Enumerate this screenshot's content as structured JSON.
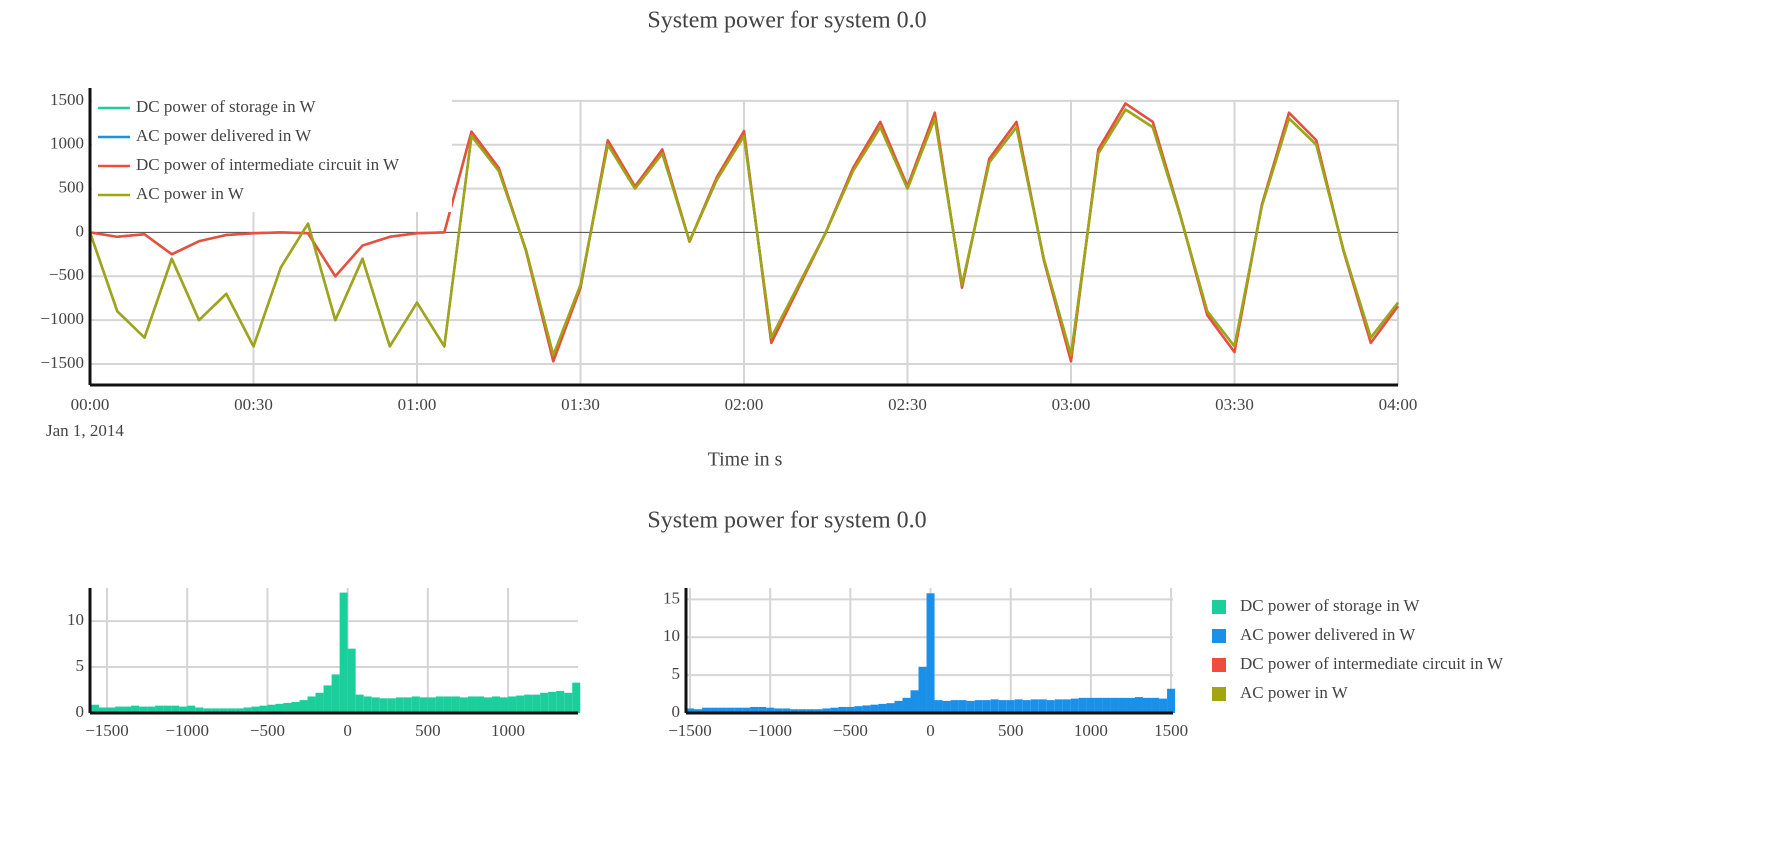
{
  "chart_data": [
    {
      "type": "line",
      "title": "System power for system 0.0",
      "x_label": "Time in s",
      "x_date_label": "Jan 1, 2014",
      "x": [
        "2014-01-01 00:00",
        "2014-01-01 00:05",
        "2014-01-01 00:10",
        "2014-01-01 00:15",
        "2014-01-01 00:20",
        "2014-01-01 00:25",
        "2014-01-01 00:30",
        "2014-01-01 00:35",
        "2014-01-01 00:40",
        "2014-01-01 00:45",
        "2014-01-01 00:50",
        "2014-01-01 00:55",
        "2014-01-01 01:00",
        "2014-01-01 01:05",
        "2014-01-01 01:10",
        "2014-01-01 01:15",
        "2014-01-01 01:20",
        "2014-01-01 01:25",
        "2014-01-01 01:30",
        "2014-01-01 01:35",
        "2014-01-01 01:40",
        "2014-01-01 01:45",
        "2014-01-01 01:50",
        "2014-01-01 01:55",
        "2014-01-01 02:00",
        "2014-01-01 02:05",
        "2014-01-01 02:10",
        "2014-01-01 02:15",
        "2014-01-01 02:20",
        "2014-01-01 02:25",
        "2014-01-01 02:30",
        "2014-01-01 02:35",
        "2014-01-01 02:40",
        "2014-01-01 02:45",
        "2014-01-01 02:50",
        "2014-01-01 02:55",
        "2014-01-01 03:00",
        "2014-01-01 03:05",
        "2014-01-01 03:10",
        "2014-01-01 03:15",
        "2014-01-01 03:20",
        "2014-01-01 03:25",
        "2014-01-01 03:30",
        "2014-01-01 03:35",
        "2014-01-01 03:40",
        "2014-01-01 03:45",
        "2014-01-01 03:50",
        "2014-01-01 03:55",
        "2014-01-01 04:00"
      ],
      "xlim": [
        "2014-01-01 00:00",
        "2014-01-01 04:00"
      ],
      "xticks": [
        {
          "value": "2014-01-01 00:00",
          "label": "00:00"
        },
        {
          "value": "2014-01-01 00:30",
          "label": "00:30"
        },
        {
          "value": "2014-01-01 01:00",
          "label": "01:00"
        },
        {
          "value": "2014-01-01 01:30",
          "label": "01:30"
        },
        {
          "value": "2014-01-01 02:00",
          "label": "02:00"
        },
        {
          "value": "2014-01-01 02:30",
          "label": "02:30"
        },
        {
          "value": "2014-01-01 03:00",
          "label": "03:00"
        },
        {
          "value": "2014-01-01 03:30",
          "label": "03:30"
        },
        {
          "value": "2014-01-01 04:00",
          "label": "04:00"
        }
      ],
      "ylim": [
        -1740,
        1510
      ],
      "yticks": [
        {
          "value": -1500,
          "label": "−1500"
        },
        {
          "value": -1000,
          "label": "−1000"
        },
        {
          "value": -500,
          "label": "−500"
        },
        0,
        500,
        1000,
        1500
      ],
      "grid": true,
      "legend": "upper left",
      "series": [
        {
          "name": "DC power of storage in W",
          "color": "#1bcf9c",
          "values": [
            0,
            -50,
            -20,
            -250,
            -100,
            -30,
            -10,
            0,
            -10,
            -500,
            -150,
            -50,
            -10,
            0,
            1150,
            735,
            -210,
            -1470,
            -630,
            1050,
            525,
            945,
            -105,
            630,
            1155,
            -1260,
            -630,
            0,
            735,
            1260,
            525,
            1365,
            -630,
            840,
            1260,
            -315,
            -1470,
            945,
            1470,
            1260,
            210,
            -945,
            -1365,
            315,
            1365,
            1050,
            -210,
            -1260,
            -840
          ]
        },
        {
          "name": "AC power delivered in W",
          "color": "#1a90e8",
          "values": [
            0,
            -900,
            -1200,
            -300,
            -1000,
            -700,
            -1300,
            -400,
            100,
            -1000,
            -300,
            -1300,
            -800,
            -1300,
            1100,
            700,
            -200,
            -1400,
            -600,
            1000,
            500,
            900,
            -100,
            600,
            1100,
            -1200,
            -600,
            0,
            700,
            1200,
            500,
            1300,
            -600,
            800,
            1200,
            -300,
            -1400,
            900,
            1400,
            1200,
            200,
            -900,
            -1300,
            300,
            1300,
            1000,
            -200,
            -1200,
            -800
          ]
        },
        {
          "name": "DC power of intermediate circuit in W",
          "color": "#ef4c3e",
          "values": [
            0,
            -50,
            -20,
            -250,
            -100,
            -30,
            -10,
            0,
            -10,
            -500,
            -150,
            -50,
            -10,
            0,
            1150,
            735,
            -210,
            -1470,
            -630,
            1050,
            525,
            945,
            -105,
            630,
            1155,
            -1260,
            -630,
            0,
            735,
            1260,
            525,
            1365,
            -630,
            840,
            1260,
            -315,
            -1470,
            945,
            1470,
            1260,
            210,
            -945,
            -1365,
            315,
            1365,
            1050,
            -210,
            -1260,
            -840
          ]
        },
        {
          "name": "AC power in W",
          "color": "#a2a50f",
          "values": [
            0,
            -900,
            -1200,
            -300,
            -1000,
            -700,
            -1300,
            -400,
            100,
            -1000,
            -300,
            -1300,
            -800,
            -1300,
            1100,
            700,
            -200,
            -1400,
            -600,
            1000,
            500,
            900,
            -100,
            600,
            1100,
            -1200,
            -600,
            0,
            700,
            1200,
            500,
            1300,
            -600,
            800,
            1200,
            -300,
            -1400,
            900,
            1400,
            1200,
            200,
            -900,
            -1300,
            300,
            1300,
            1000,
            -200,
            -1200,
            -800
          ]
        }
      ]
    },
    {
      "type": "histogram",
      "title": "System power for system 0.0",
      "legend": [
        {
          "name": "DC power of storage in W",
          "color": "#1bcf9c"
        },
        {
          "name": "AC power delivered in W",
          "color": "#1a90e8"
        },
        {
          "name": "DC power of intermediate circuit in W",
          "color": "#ef4c3e"
        },
        {
          "name": "AC power in W",
          "color": "#a2a50f"
        }
      ],
      "panels": [
        {
          "color": "#1bcf9c",
          "xlim": [
            -1606,
            1436
          ],
          "ylim": [
            0,
            13.6
          ],
          "xticks": [
            {
              "value": -1500,
              "label": "−1500"
            },
            {
              "value": -1000,
              "label": "−1000"
            },
            {
              "value": -500,
              "label": "−500"
            },
            0,
            500,
            1000
          ],
          "yticks": [
            0,
            5,
            10
          ],
          "bins": [
            -1600,
            -1550,
            -1500,
            -1450,
            -1400,
            -1350,
            -1300,
            -1250,
            -1200,
            -1150,
            -1100,
            -1050,
            -1000,
            -950,
            -900,
            -850,
            -800,
            -750,
            -700,
            -650,
            -600,
            -550,
            -500,
            -450,
            -400,
            -350,
            -300,
            -250,
            -200,
            -150,
            -100,
            -50,
            0,
            50,
            100,
            150,
            200,
            250,
            300,
            350,
            400,
            450,
            500,
            550,
            600,
            650,
            700,
            750,
            800,
            850,
            900,
            950,
            1000,
            1050,
            1100,
            1150,
            1200,
            1250,
            1300,
            1350,
            1400,
            1450
          ],
          "counts": [
            0.9,
            0.6,
            0.6,
            0.7,
            0.7,
            0.8,
            0.7,
            0.7,
            0.8,
            0.8,
            0.8,
            0.7,
            0.8,
            0.6,
            0.5,
            0.5,
            0.5,
            0.5,
            0.5,
            0.6,
            0.7,
            0.8,
            0.9,
            1.0,
            1.1,
            1.2,
            1.4,
            1.8,
            2.2,
            3.0,
            4.2,
            13.1,
            7.0,
            2.0,
            1.8,
            1.7,
            1.6,
            1.6,
            1.7,
            1.7,
            1.8,
            1.7,
            1.7,
            1.8,
            1.8,
            1.8,
            1.7,
            1.8,
            1.8,
            1.7,
            1.8,
            1.7,
            1.8,
            1.9,
            2.0,
            2.0,
            2.2,
            2.3,
            2.4,
            2.2,
            3.3
          ]
        },
        {
          "color": "#1a90e8",
          "xlim": [
            -1525,
            1512
          ],
          "ylim": [
            0,
            16.5
          ],
          "xticks": [
            {
              "value": -1500,
              "label": "−1500"
            },
            {
              "value": -1000,
              "label": "−1000"
            },
            {
              "value": -500,
              "label": "−500"
            },
            0,
            500,
            1000,
            1500
          ],
          "yticks": [
            0,
            5,
            10,
            15
          ],
          "bins": [
            -1525,
            -1475,
            -1425,
            -1375,
            -1325,
            -1275,
            -1225,
            -1175,
            -1125,
            -1075,
            -1025,
            -975,
            -925,
            -875,
            -825,
            -775,
            -725,
            -675,
            -625,
            -575,
            -525,
            -475,
            -425,
            -375,
            -325,
            -275,
            -225,
            -175,
            -125,
            -75,
            -25,
            25,
            75,
            125,
            175,
            225,
            275,
            325,
            375,
            425,
            475,
            525,
            575,
            625,
            675,
            725,
            775,
            825,
            875,
            925,
            975,
            1025,
            1075,
            1125,
            1175,
            1225,
            1275,
            1325,
            1375,
            1425,
            1475,
            1525
          ],
          "counts": [
            0.6,
            0.5,
            0.7,
            0.7,
            0.7,
            0.7,
            0.7,
            0.7,
            0.8,
            0.8,
            0.7,
            0.6,
            0.6,
            0.5,
            0.5,
            0.5,
            0.5,
            0.6,
            0.7,
            0.8,
            0.8,
            0.9,
            1.0,
            1.1,
            1.2,
            1.3,
            1.6,
            2.0,
            3.0,
            6.1,
            15.8,
            1.7,
            1.6,
            1.7,
            1.7,
            1.6,
            1.7,
            1.7,
            1.8,
            1.7,
            1.7,
            1.8,
            1.7,
            1.8,
            1.8,
            1.7,
            1.8,
            1.8,
            1.9,
            2.0,
            2.0,
            2.0,
            2.0,
            2.0,
            2.0,
            2.0,
            2.1,
            2.0,
            2.0,
            1.9,
            3.2
          ]
        }
      ]
    }
  ]
}
